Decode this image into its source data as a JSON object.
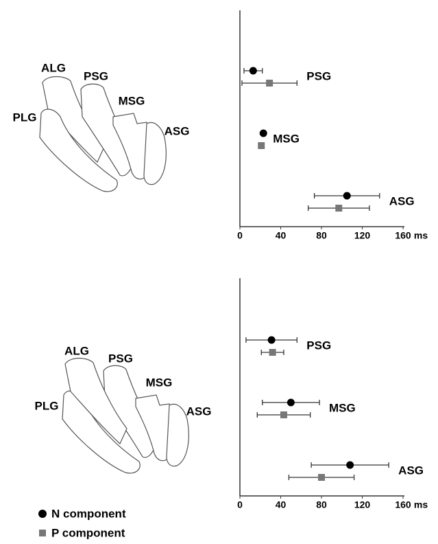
{
  "diagrams": [
    {
      "labels": [
        "ALG",
        "PSG",
        "PLG",
        "MSG",
        "ASG"
      ],
      "highlighted": "PLG"
    },
    {
      "labels": [
        "ALG",
        "PSG",
        "PLG",
        "MSG",
        "ASG"
      ],
      "highlighted": "ALG"
    }
  ],
  "chart_data": [
    {
      "type": "dot-error",
      "categories": [
        "PSG",
        "MSG",
        "ASG"
      ],
      "series": [
        {
          "name": "N component",
          "color": "#000000",
          "marker": "circle",
          "values": [
            13,
            23,
            105
          ],
          "errors": [
            9,
            0,
            32
          ]
        },
        {
          "name": "P component",
          "color": "#777777",
          "marker": "square",
          "values": [
            29,
            21,
            97
          ],
          "errors": [
            27,
            0,
            30
          ]
        }
      ],
      "xlim": [
        0,
        160
      ],
      "xticks": [
        0,
        40,
        80,
        120,
        160
      ],
      "xlabel": "ms"
    },
    {
      "type": "dot-error",
      "categories": [
        "PSG",
        "MSG",
        "ASG"
      ],
      "series": [
        {
          "color": "#000000",
          "marker": "circle",
          "values": [
            31,
            50,
            108
          ],
          "errors": [
            25,
            28,
            38
          ]
        },
        {
          "color": "#777777",
          "marker": "square",
          "values": [
            32,
            43,
            80
          ],
          "errors": [
            11,
            26,
            32
          ]
        }
      ],
      "xlim": [
        0,
        160
      ],
      "xticks": [
        0,
        40,
        80,
        120,
        160
      ],
      "xlabel": "ms"
    }
  ]
}
